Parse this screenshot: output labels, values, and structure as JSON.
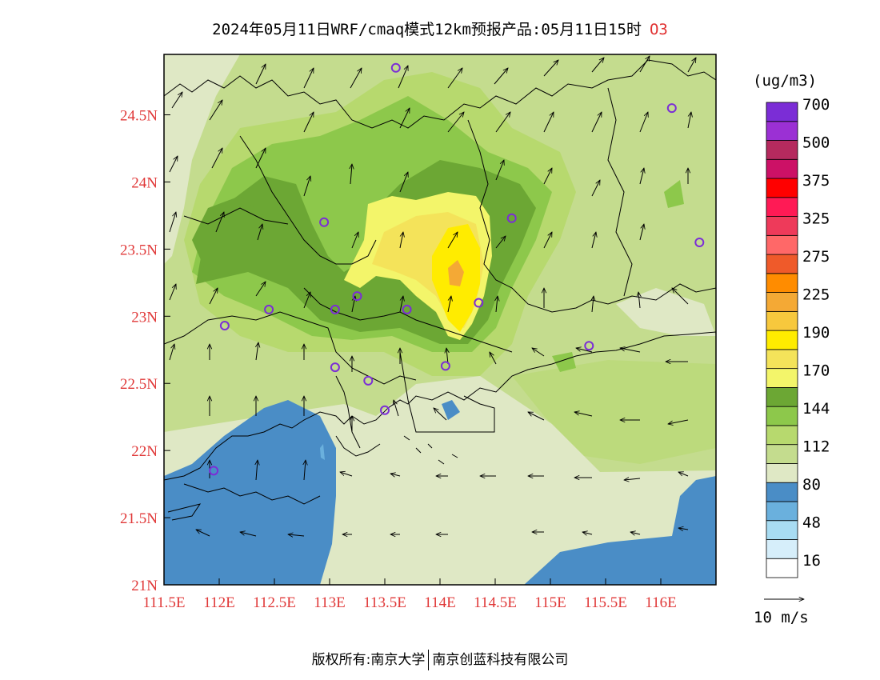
{
  "title": {
    "text": "2024年05月11日WRF/cmaq模式12km预报产品:05月11日15时",
    "species": "O3"
  },
  "footer": {
    "left": "版权所有:南京大学",
    "right": "南京创蓝科技有限公司"
  },
  "map": {
    "lon_range": [
      111.5,
      116.5
    ],
    "lat_range": [
      21.0,
      24.95
    ],
    "lon_ticks": [
      {
        "value": 111.5,
        "label": "111.5E"
      },
      {
        "value": 112.0,
        "label": "112E"
      },
      {
        "value": 112.5,
        "label": "112.5E"
      },
      {
        "value": 113.0,
        "label": "113E"
      },
      {
        "value": 113.5,
        "label": "113.5E"
      },
      {
        "value": 114.0,
        "label": "114E"
      },
      {
        "value": 114.5,
        "label": "114.5E"
      },
      {
        "value": 115.0,
        "label": "115E"
      },
      {
        "value": 115.5,
        "label": "115.5E"
      },
      {
        "value": 116.0,
        "label": "116E"
      }
    ],
    "lat_ticks": [
      {
        "value": 21.0,
        "label": "21N"
      },
      {
        "value": 21.5,
        "label": "21.5N"
      },
      {
        "value": 22.0,
        "label": "22N"
      },
      {
        "value": 22.5,
        "label": "22.5N"
      },
      {
        "value": 23.0,
        "label": "23N"
      },
      {
        "value": 23.5,
        "label": "23.5N"
      },
      {
        "value": 24.0,
        "label": "24N"
      },
      {
        "value": 24.5,
        "label": "24.5N"
      }
    ],
    "stations": [
      {
        "lon": 113.6,
        "lat": 24.85
      },
      {
        "lon": 116.1,
        "lat": 24.55
      },
      {
        "lon": 112.95,
        "lat": 23.7
      },
      {
        "lon": 114.65,
        "lat": 23.73
      },
      {
        "lon": 116.35,
        "lat": 23.55
      },
      {
        "lon": 112.45,
        "lat": 23.05
      },
      {
        "lon": 113.05,
        "lat": 23.05
      },
      {
        "lon": 113.25,
        "lat": 23.15
      },
      {
        "lon": 113.7,
        "lat": 23.05
      },
      {
        "lon": 114.35,
        "lat": 23.1
      },
      {
        "lon": 112.05,
        "lat": 22.93
      },
      {
        "lon": 113.05,
        "lat": 22.62
      },
      {
        "lon": 113.35,
        "lat": 22.52
      },
      {
        "lon": 114.05,
        "lat": 22.63
      },
      {
        "lon": 115.35,
        "lat": 22.78
      },
      {
        "lon": 113.5,
        "lat": 22.3
      },
      {
        "lon": 111.95,
        "lat": 21.85
      }
    ]
  },
  "legend": {
    "unit": "(ug/m3)",
    "levels": [
      {
        "color": "#ffffff",
        "label": "16"
      },
      {
        "color": "#d6eefa",
        "label": ""
      },
      {
        "color": "#a8dcf2",
        "label": "48"
      },
      {
        "color": "#6ab0dd",
        "label": ""
      },
      {
        "color": "#4a8dc6",
        "label": "80"
      },
      {
        "color": "#dfe8c5",
        "label": ""
      },
      {
        "color": "#c4dc8e",
        "label": "112"
      },
      {
        "color": "#b7d96e",
        "label": ""
      },
      {
        "color": "#8dc84b",
        "label": "144"
      },
      {
        "color": "#6ca734",
        "label": ""
      },
      {
        "color": "#f3f56a",
        "label": "170"
      },
      {
        "color": "#f4e35a",
        "label": ""
      },
      {
        "color": "#ffec00",
        "label": "190"
      },
      {
        "color": "#f7c83d",
        "label": ""
      },
      {
        "color": "#f4a935",
        "label": "225"
      },
      {
        "color": "#ff8c00",
        "label": ""
      },
      {
        "color": "#ef5a2a",
        "label": "275"
      },
      {
        "color": "#ff6868",
        "label": ""
      },
      {
        "color": "#ee3a5a",
        "label": "325"
      },
      {
        "color": "#ff1a55",
        "label": ""
      },
      {
        "color": "#ff0000",
        "label": "375"
      },
      {
        "color": "#cc1166",
        "label": ""
      },
      {
        "color": "#b52a5e",
        "label": "500"
      },
      {
        "color": "#9b30d4",
        "label": ""
      },
      {
        "color": "#7b2dd6",
        "label": "700"
      }
    ],
    "wind_reference": "10 m/s"
  }
}
